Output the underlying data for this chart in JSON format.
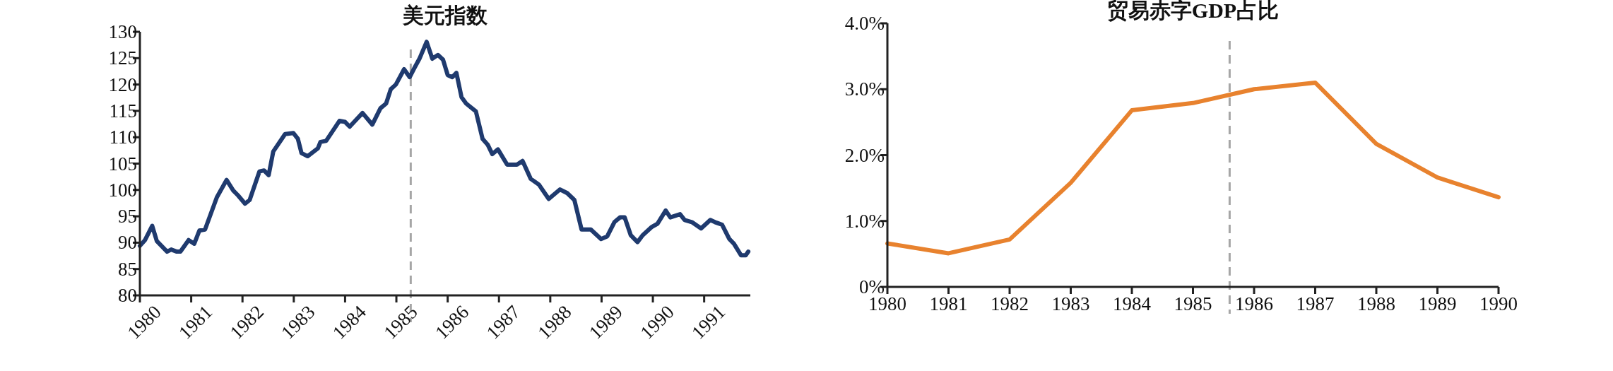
{
  "chart_data": [
    {
      "type": "line",
      "title": "美元指数",
      "xlim": [
        1980,
        1991.9
      ],
      "ylim": [
        80,
        130
      ],
      "xticks": [
        1980,
        1981,
        1982,
        1983,
        1984,
        1985,
        1986,
        1987,
        1988,
        1989,
        1990,
        1991
      ],
      "yticks": [
        80,
        85,
        90,
        95,
        100,
        105,
        110,
        115,
        120,
        125,
        130
      ],
      "ref_lines": [
        {
          "axis": "x",
          "value": 1985.28,
          "color": "#a6a6a6",
          "line_style": "dashed"
        }
      ],
      "series": [
        {
          "color": "#1f3a6e",
          "x": [
            1980.0,
            1980.1,
            1980.24,
            1980.33,
            1980.53,
            1980.61,
            1980.72,
            1980.79,
            1980.95,
            1981.06,
            1981.16,
            1981.27,
            1981.5,
            1981.69,
            1981.82,
            1981.91,
            1982.05,
            1982.14,
            1982.33,
            1982.42,
            1982.51,
            1982.6,
            1982.83,
            1982.99,
            1983.08,
            1983.15,
            1983.27,
            1983.47,
            1983.52,
            1983.63,
            1983.89,
            1984.0,
            1984.09,
            1984.34,
            1984.53,
            1984.69,
            1984.8,
            1984.89,
            1984.99,
            1985.15,
            1985.26,
            1985.35,
            1985.45,
            1985.59,
            1985.7,
            1985.81,
            1985.91,
            1986.0,
            1986.09,
            1986.17,
            1986.27,
            1986.36,
            1986.55,
            1986.68,
            1986.78,
            1986.87,
            1986.98,
            1987.16,
            1987.35,
            1987.46,
            1987.62,
            1987.78,
            1987.97,
            1988.19,
            1988.33,
            1988.47,
            1988.61,
            1988.79,
            1988.99,
            1989.11,
            1989.25,
            1989.36,
            1989.45,
            1989.57,
            1989.7,
            1989.8,
            1989.98,
            1990.09,
            1990.25,
            1990.34,
            1990.53,
            1990.62,
            1990.76,
            1990.94,
            1991.12,
            1991.21,
            1991.35,
            1991.49,
            1991.58,
            1991.72,
            1991.81,
            1991.86
          ],
          "values": [
            89.4,
            90.5,
            93.2,
            90.3,
            88.3,
            88.7,
            88.3,
            88.3,
            90.5,
            89.8,
            92.3,
            92.5,
            98.6,
            101.9,
            99.9,
            99.0,
            97.4,
            98.1,
            103.5,
            103.7,
            102.8,
            107.3,
            110.6,
            110.8,
            109.7,
            107.0,
            106.4,
            107.9,
            109.1,
            109.3,
            113.1,
            112.9,
            112.0,
            114.6,
            112.4,
            115.5,
            116.4,
            119.1,
            120.0,
            122.9,
            121.4,
            123.1,
            124.9,
            128.1,
            124.9,
            125.6,
            124.7,
            121.8,
            121.4,
            122.2,
            117.6,
            116.4,
            114.9,
            109.7,
            108.6,
            106.8,
            107.7,
            104.8,
            104.8,
            105.5,
            102.1,
            101.0,
            98.3,
            100.1,
            99.4,
            98.1,
            92.5,
            92.5,
            90.7,
            91.2,
            93.9,
            94.8,
            94.8,
            91.4,
            90.1,
            91.4,
            93.0,
            93.6,
            96.1,
            94.8,
            95.4,
            94.3,
            93.9,
            92.7,
            94.3,
            93.9,
            93.4,
            90.7,
            89.8,
            87.6,
            87.6,
            88.3
          ]
        }
      ]
    },
    {
      "type": "line",
      "title": "贸易赤字GDP占比",
      "xlim": [
        1980,
        1990
      ],
      "ylim": [
        0,
        4
      ],
      "xticks": [
        1980,
        1981,
        1982,
        1983,
        1984,
        1985,
        1986,
        1987,
        1988,
        1989,
        1990
      ],
      "yticks": [
        {
          "value": 0,
          "label": "0%"
        },
        {
          "value": 1,
          "label": "1.0%"
        },
        {
          "value": 2,
          "label": "2.0%"
        },
        {
          "value": 3,
          "label": "3.0%"
        },
        {
          "value": 4,
          "label": "4.0%"
        }
      ],
      "ref_lines": [
        {
          "axis": "x",
          "value": 1985.6,
          "color": "#a6a6a6",
          "line_style": "dashed"
        }
      ],
      "series": [
        {
          "color": "#e8822e",
          "x": [
            1980,
            1981,
            1982,
            1983,
            1984,
            1985,
            1986,
            1987,
            1988,
            1989,
            1990
          ],
          "values": [
            0.66,
            0.51,
            0.72,
            1.58,
            2.68,
            2.79,
            3.0,
            3.1,
            2.17,
            1.66,
            1.36
          ]
        }
      ]
    }
  ]
}
